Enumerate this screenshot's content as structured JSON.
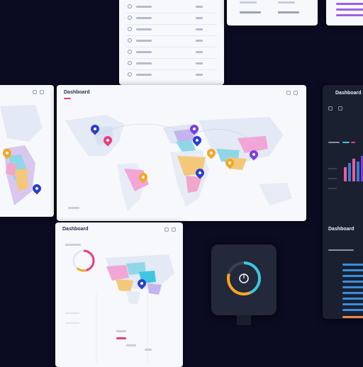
{
  "top_list": {
    "rows": [
      {
        "label": "",
        "value": ""
      },
      {
        "label": "",
        "value": ""
      },
      {
        "label": "",
        "value": ""
      },
      {
        "label": "",
        "value": ""
      },
      {
        "label": "",
        "value": ""
      },
      {
        "label": "",
        "value": ""
      },
      {
        "label": "",
        "value": ""
      }
    ]
  },
  "main_map": {
    "title": "Dashboard",
    "pins": [
      "#2b3fc9",
      "#ea3c7d",
      "#7b3fe0",
      "#2b3fc9",
      "#f5a623",
      "#f5a623",
      "#7b3fe0",
      "#f5a623",
      "#2b3fc9"
    ]
  },
  "left_sidebar": {
    "pins": [
      "#f5a623",
      "#2b3fc9"
    ]
  },
  "lower_map": {
    "title": "Dashboard",
    "gauge_label": "",
    "footer_rows": [
      "",
      "",
      "",
      ""
    ]
  },
  "right_panel": {
    "title": "Dashboard",
    "section_title": "Dashboard",
    "chart_colors": [
      "#e85d9a",
      "#3a7bd5",
      "#e85d9a",
      "#3a7bd5",
      "#7b3fe0",
      "#3a7bd5"
    ]
  },
  "watch_widget": {
    "label": ""
  },
  "colors": {
    "background": "#0b0b22",
    "panel": "#f7f8fb",
    "dark_panel": "#1b2030",
    "accent_pink": "#ea3c7d",
    "accent_blue": "#2b3fc9",
    "accent_orange": "#f5a623",
    "accent_purple": "#7b3fe0",
    "accent_cyan": "#3ec6e0"
  }
}
